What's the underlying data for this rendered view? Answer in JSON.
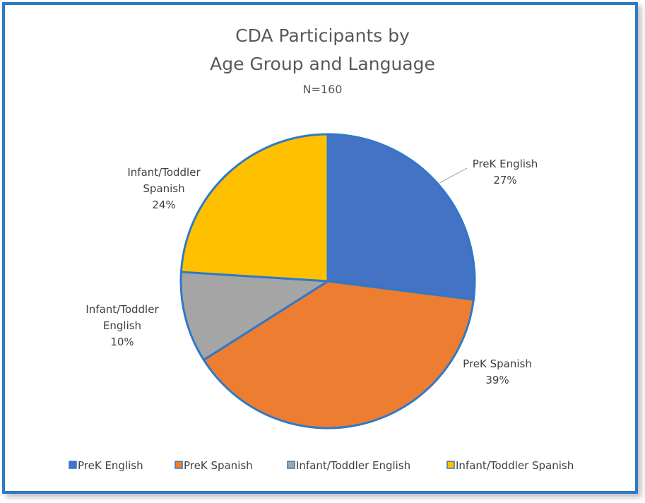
{
  "chart_data": {
    "type": "pie",
    "title": "CDA Participants by",
    "title_line2": "Age Group and Language",
    "subtitle": "N=160",
    "slices": [
      {
        "label": "PreK English",
        "percent_label": "27%",
        "value": 27,
        "color": "#4472c4"
      },
      {
        "label": "PreK Spanish",
        "percent_label": "39%",
        "value": 39,
        "color": "#ed7d31"
      },
      {
        "label": "Infant/Toddler English",
        "percent_label": "10%",
        "value": 10,
        "color": "#a5a5a5"
      },
      {
        "label": "Infant/Toddler Spanish",
        "percent_label": "24%",
        "value": 24,
        "color": "#ffc000"
      }
    ],
    "legend_placement": "bottom",
    "slice_border_color": "#2f79c7"
  }
}
